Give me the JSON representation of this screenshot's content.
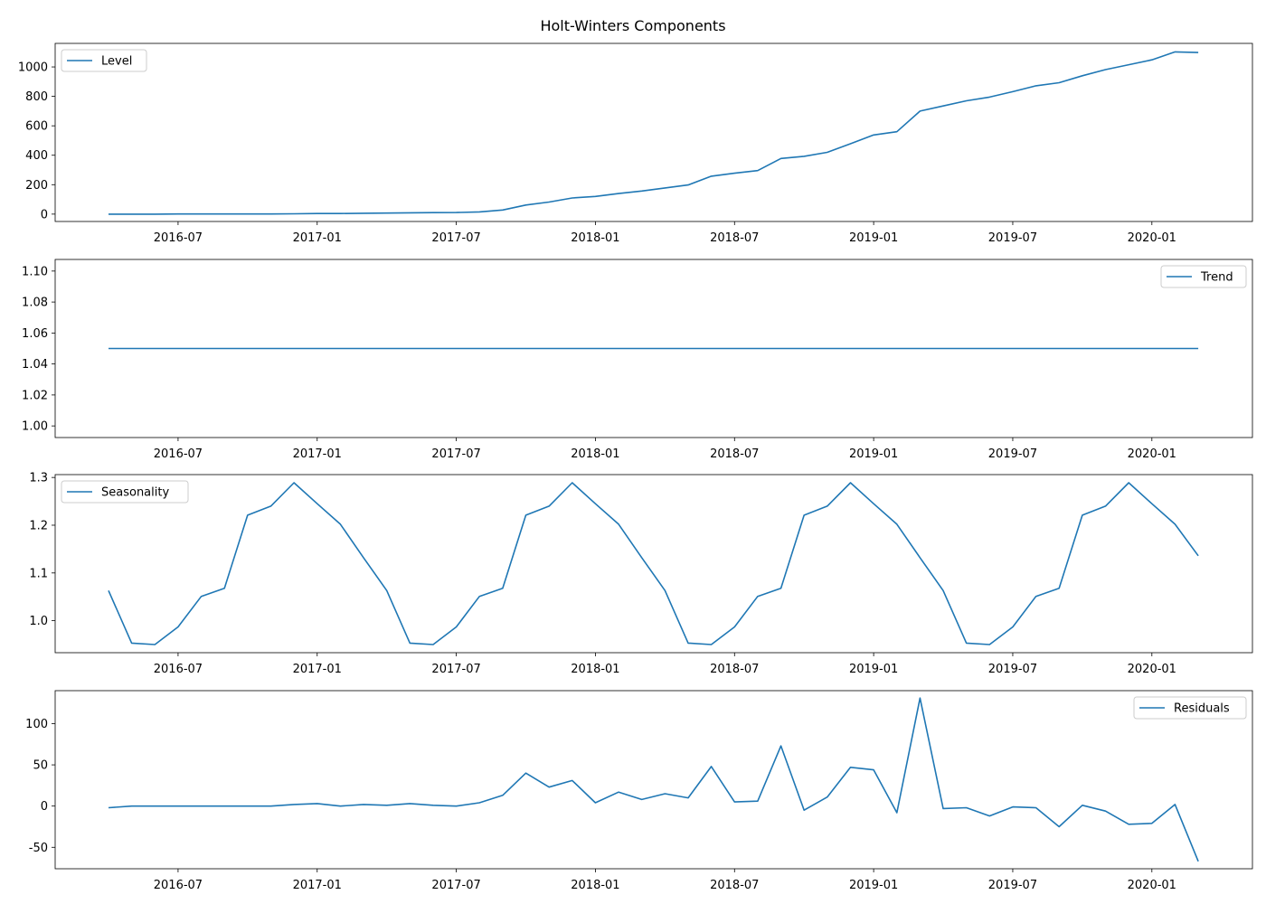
{
  "title": "Holt-Winters Components",
  "colors": {
    "series": "#1f77b4",
    "axis": "#000000",
    "legend_border": "#cccccc"
  },
  "x_ticks": [
    "2016-07",
    "2017-01",
    "2017-07",
    "2018-01",
    "2018-07",
    "2019-01",
    "2019-07",
    "2020-01"
  ],
  "chart_data": [
    {
      "type": "line",
      "name": "Level",
      "legend_position": "top-left",
      "x": [
        "2016-04",
        "2016-05",
        "2016-06",
        "2016-07",
        "2016-08",
        "2016-09",
        "2016-10",
        "2016-11",
        "2016-12",
        "2017-01",
        "2017-02",
        "2017-03",
        "2017-04",
        "2017-05",
        "2017-06",
        "2017-07",
        "2017-08",
        "2017-09",
        "2017-10",
        "2017-11",
        "2017-12",
        "2018-01",
        "2018-02",
        "2018-03",
        "2018-04",
        "2018-05",
        "2018-06",
        "2018-07",
        "2018-08",
        "2018-09",
        "2018-10",
        "2018-11",
        "2018-12",
        "2019-01",
        "2019-02",
        "2019-03",
        "2019-04",
        "2019-05",
        "2019-06",
        "2019-07",
        "2019-08",
        "2019-09",
        "2019-10",
        "2019-11",
        "2019-12",
        "2020-01",
        "2020-02",
        "2020-03"
      ],
      "values": [
        0,
        0,
        0,
        1,
        1,
        1,
        1,
        1,
        2,
        4,
        4,
        6,
        7,
        9,
        10,
        11,
        15,
        28,
        62,
        82,
        110,
        120,
        140,
        157,
        178,
        198,
        258,
        278,
        296,
        378,
        393,
        420,
        478,
        538,
        560,
        700,
        735,
        770,
        795,
        832,
        872,
        893,
        940,
        982,
        1015,
        1048,
        1102,
        1098
      ],
      "ylim": [
        -50,
        1160
      ],
      "yticks": [
        0,
        200,
        400,
        600,
        800,
        1000
      ]
    },
    {
      "type": "line",
      "name": "Trend",
      "legend_position": "top-right",
      "x": [
        "2016-04",
        "2016-05",
        "2016-06",
        "2016-07",
        "2016-08",
        "2016-09",
        "2016-10",
        "2016-11",
        "2016-12",
        "2017-01",
        "2017-02",
        "2017-03",
        "2017-04",
        "2017-05",
        "2017-06",
        "2017-07",
        "2017-08",
        "2017-09",
        "2017-10",
        "2017-11",
        "2017-12",
        "2018-01",
        "2018-02",
        "2018-03",
        "2018-04",
        "2018-05",
        "2018-06",
        "2018-07",
        "2018-08",
        "2018-09",
        "2018-10",
        "2018-11",
        "2018-12",
        "2019-01",
        "2019-02",
        "2019-03",
        "2019-04",
        "2019-05",
        "2019-06",
        "2019-07",
        "2019-08",
        "2019-09",
        "2019-10",
        "2019-11",
        "2019-12",
        "2020-01",
        "2020-02",
        "2020-03"
      ],
      "values": [
        1.05,
        1.05,
        1.05,
        1.05,
        1.05,
        1.05,
        1.05,
        1.05,
        1.05,
        1.05,
        1.05,
        1.05,
        1.05,
        1.05,
        1.05,
        1.05,
        1.05,
        1.05,
        1.05,
        1.05,
        1.05,
        1.05,
        1.05,
        1.05,
        1.05,
        1.05,
        1.05,
        1.05,
        1.05,
        1.05,
        1.05,
        1.05,
        1.05,
        1.05,
        1.05,
        1.05,
        1.05,
        1.05,
        1.05,
        1.05,
        1.05,
        1.05,
        1.05,
        1.05,
        1.05,
        1.05,
        1.05,
        1.05
      ],
      "ylim": [
        0.9925,
        1.1075
      ],
      "yticks": [
        1.0,
        1.02,
        1.04,
        1.06,
        1.08,
        1.1
      ],
      "ytick_decimals": 2
    },
    {
      "type": "line",
      "name": "Seasonality",
      "legend_position": "top-left",
      "x": [
        "2016-04",
        "2016-05",
        "2016-06",
        "2016-07",
        "2016-08",
        "2016-09",
        "2016-10",
        "2016-11",
        "2016-12",
        "2017-01",
        "2017-02",
        "2017-03",
        "2017-04",
        "2017-05",
        "2017-06",
        "2017-07",
        "2017-08",
        "2017-09",
        "2017-10",
        "2017-11",
        "2017-12",
        "2018-01",
        "2018-02",
        "2018-03",
        "2018-04",
        "2018-05",
        "2018-06",
        "2018-07",
        "2018-08",
        "2018-09",
        "2018-10",
        "2018-11",
        "2018-12",
        "2019-01",
        "2019-02",
        "2019-03",
        "2019-04",
        "2019-05",
        "2019-06",
        "2019-07",
        "2019-08",
        "2019-09",
        "2019-10",
        "2019-11",
        "2019-12",
        "2020-01",
        "2020-02",
        "2020-03"
      ],
      "values": [
        1.063,
        0.953,
        0.95,
        0.987,
        1.051,
        1.068,
        1.221,
        1.24,
        1.289,
        1.245,
        1.202,
        1.132,
        1.063,
        0.953,
        0.95,
        0.987,
        1.051,
        1.068,
        1.221,
        1.24,
        1.289,
        1.245,
        1.202,
        1.132,
        1.063,
        0.953,
        0.95,
        0.987,
        1.051,
        1.068,
        1.221,
        1.24,
        1.289,
        1.245,
        1.202,
        1.132,
        1.063,
        0.953,
        0.95,
        0.987,
        1.051,
        1.068,
        1.221,
        1.24,
        1.289,
        1.245,
        1.202,
        1.136
      ],
      "ylim": [
        0.933,
        1.306
      ],
      "yticks": [
        1.0,
        1.1,
        1.2,
        1.3
      ],
      "ytick_decimals": 1
    },
    {
      "type": "line",
      "name": "Residuals",
      "legend_position": "top-right",
      "x": [
        "2016-04",
        "2016-05",
        "2016-06",
        "2016-07",
        "2016-08",
        "2016-09",
        "2016-10",
        "2016-11",
        "2016-12",
        "2017-01",
        "2017-02",
        "2017-03",
        "2017-04",
        "2017-05",
        "2017-06",
        "2017-07",
        "2017-08",
        "2017-09",
        "2017-10",
        "2017-11",
        "2017-12",
        "2018-01",
        "2018-02",
        "2018-03",
        "2018-04",
        "2018-05",
        "2018-06",
        "2018-07",
        "2018-08",
        "2018-09",
        "2018-10",
        "2018-11",
        "2018-12",
        "2019-01",
        "2019-02",
        "2019-03",
        "2019-04",
        "2019-05",
        "2019-06",
        "2019-07",
        "2019-08",
        "2019-09",
        "2019-10",
        "2019-11",
        "2019-12",
        "2020-01",
        "2020-02",
        "2020-03"
      ],
      "values": [
        -2,
        0,
        0,
        0,
        0,
        0,
        0,
        0,
        2,
        3,
        0,
        2,
        1,
        3,
        1,
        0,
        4,
        13,
        40,
        23,
        31,
        4,
        17,
        8,
        15,
        10,
        48,
        5,
        6,
        73,
        -5,
        11,
        47,
        44,
        -8,
        131,
        -3,
        -2,
        -12,
        -1,
        -2,
        -25,
        1,
        -6,
        -22,
        -21,
        2,
        -67
      ],
      "ylim": [
        -76,
        140
      ],
      "yticks": [
        -50,
        0,
        50,
        100
      ]
    }
  ]
}
